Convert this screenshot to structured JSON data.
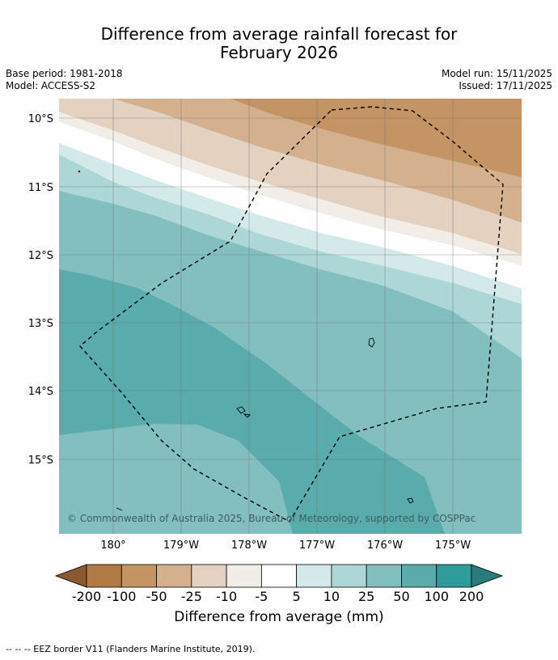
{
  "title_line1": "Difference from average rainfall forecast for",
  "title_line2": "February 2026",
  "meta": {
    "base_period": "Base period: 1981-2018",
    "model": "Model: ACCESS-S2",
    "model_run": "Model run: 15/11/2025",
    "issued": "Issued: 17/11/2025"
  },
  "map": {
    "latitude_labels": [
      "10°S",
      "11°S",
      "12°S",
      "13°S",
      "14°S",
      "15°S"
    ],
    "longitude_labels": [
      "180°",
      "179°W",
      "178°W",
      "177°W",
      "176°W",
      "175°W"
    ],
    "copyright": "© Commonwealth of Australia 2025, Bureau of Meteorology, supported by COSPPac"
  },
  "colorbar": {
    "ticks": [
      "-200",
      "-100",
      "-50",
      "-25",
      "-10",
      "-5",
      "5",
      "10",
      "25",
      "50",
      "100",
      "200"
    ],
    "colors": [
      "#8a5a2e",
      "#b07a45",
      "#c49465",
      "#d4b08e",
      "#e5d1c0",
      "#f2ede6",
      "#ffffff",
      "#d4eaea",
      "#add6d6",
      "#84bfbf",
      "#5aabab",
      "#309b9b",
      "#2a7c7c"
    ],
    "title": "Difference from average (mm)"
  },
  "footer": "--  --  -- EEZ border V11 (Flanders Marine Institute, 2019)."
}
